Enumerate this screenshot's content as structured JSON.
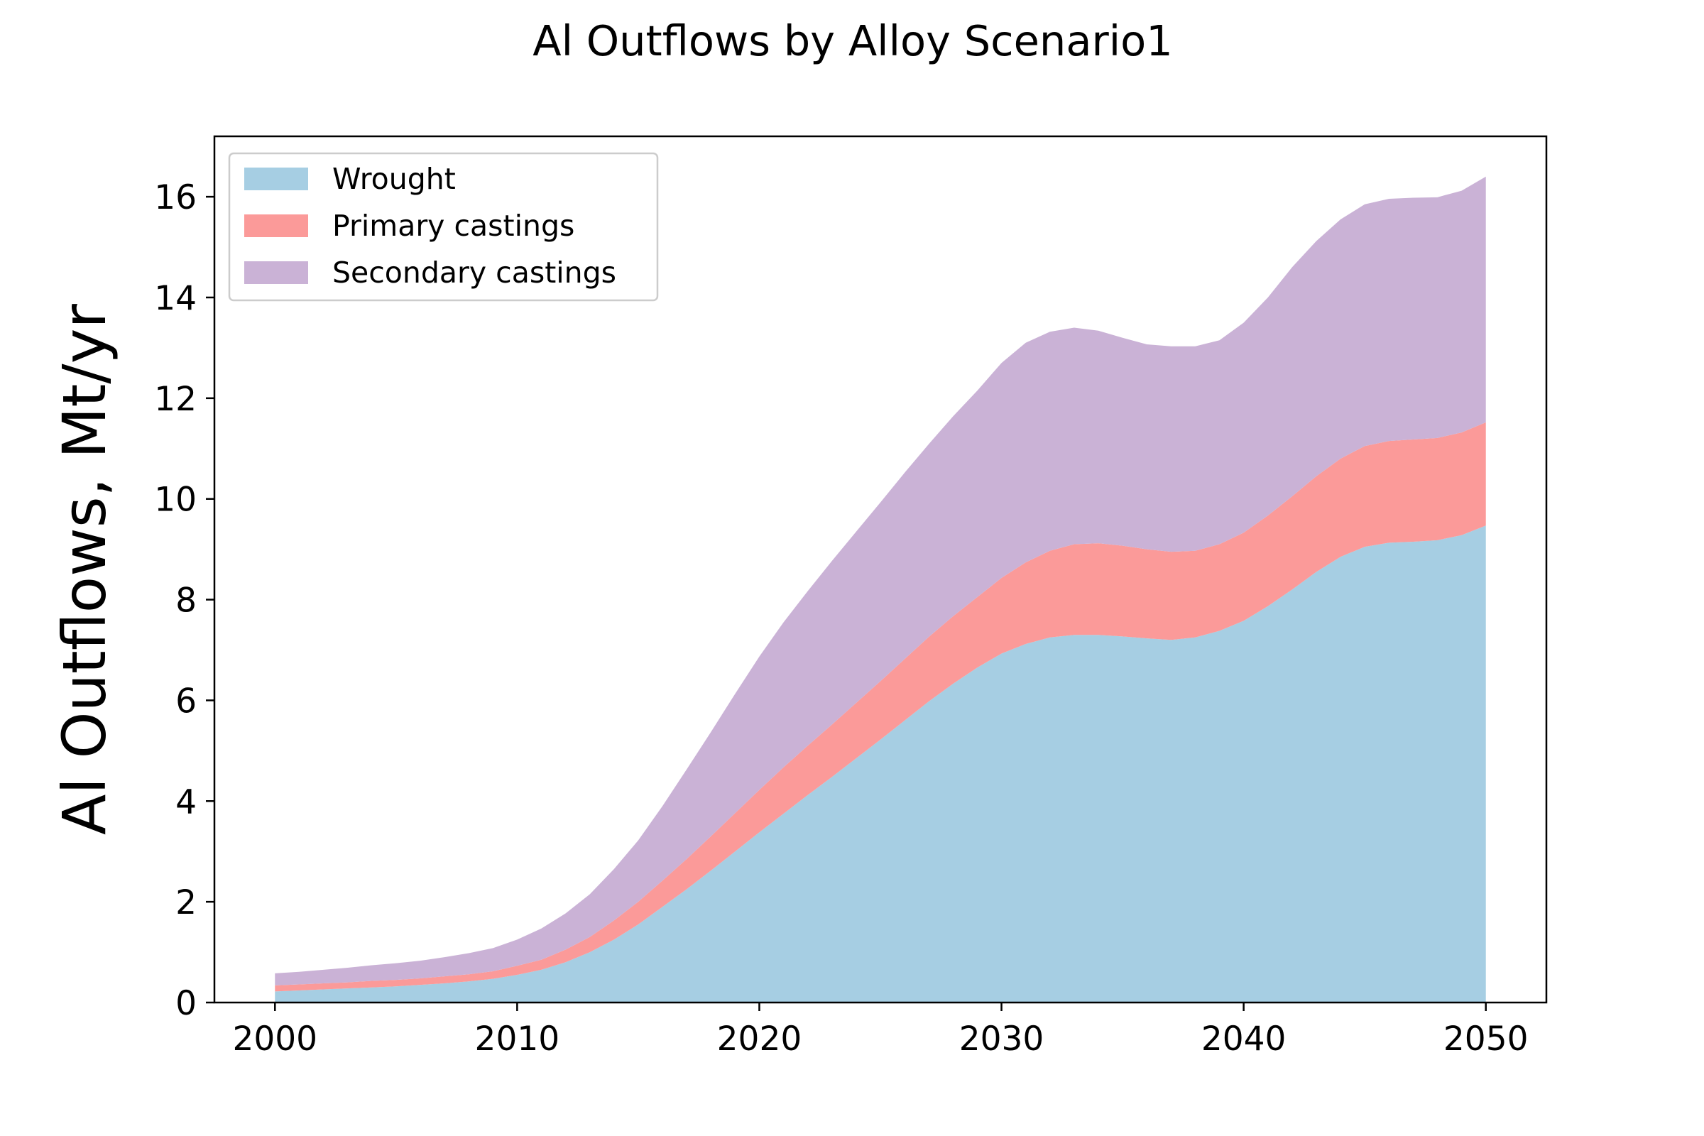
{
  "chart_data": {
    "type": "area",
    "stacked": true,
    "title": "Al Outflows by Alloy Scenario1",
    "xlabel": "",
    "ylabel": "Al Outflows, Mt/yr",
    "xlim": [
      1997.5,
      2052.5
    ],
    "ylim": [
      0,
      17.2
    ],
    "x_ticks": [
      2000,
      2010,
      2020,
      2030,
      2040,
      2050
    ],
    "y_ticks": [
      0,
      2,
      4,
      6,
      8,
      10,
      12,
      14,
      16
    ],
    "grid": false,
    "legend_position": "top-left",
    "x": [
      2000,
      2001,
      2002,
      2003,
      2004,
      2005,
      2006,
      2007,
      2008,
      2009,
      2010,
      2011,
      2012,
      2013,
      2014,
      2015,
      2016,
      2017,
      2018,
      2019,
      2020,
      2021,
      2022,
      2023,
      2024,
      2025,
      2026,
      2027,
      2028,
      2029,
      2030,
      2031,
      2032,
      2033,
      2034,
      2035,
      2036,
      2037,
      2038,
      2039,
      2040,
      2041,
      2042,
      2043,
      2044,
      2045,
      2046,
      2047,
      2048,
      2049,
      2050
    ],
    "series": [
      {
        "name": "Wrought",
        "color": "#a6cee3",
        "values": [
          0.22,
          0.24,
          0.26,
          0.28,
          0.3,
          0.32,
          0.35,
          0.38,
          0.42,
          0.47,
          0.55,
          0.65,
          0.8,
          1.0,
          1.25,
          1.55,
          1.9,
          2.25,
          2.62,
          3.0,
          3.38,
          3.75,
          4.12,
          4.48,
          4.85,
          5.22,
          5.6,
          5.98,
          6.33,
          6.65,
          6.93,
          7.12,
          7.25,
          7.3,
          7.3,
          7.27,
          7.23,
          7.2,
          7.25,
          7.38,
          7.58,
          7.87,
          8.2,
          8.55,
          8.85,
          9.05,
          9.13,
          9.15,
          9.18,
          9.28,
          9.47
        ]
      },
      {
        "name": "Primary castings",
        "color": "#fb9a99",
        "values": [
          0.12,
          0.12,
          0.12,
          0.12,
          0.13,
          0.13,
          0.13,
          0.14,
          0.14,
          0.15,
          0.18,
          0.2,
          0.25,
          0.3,
          0.38,
          0.45,
          0.52,
          0.6,
          0.68,
          0.76,
          0.84,
          0.92,
          0.98,
          1.04,
          1.1,
          1.16,
          1.22,
          1.28,
          1.34,
          1.4,
          1.5,
          1.62,
          1.72,
          1.8,
          1.82,
          1.8,
          1.77,
          1.75,
          1.72,
          1.72,
          1.75,
          1.8,
          1.85,
          1.9,
          1.95,
          2.0,
          2.02,
          2.03,
          2.03,
          2.04,
          2.05
        ]
      },
      {
        "name": "Secondary castings",
        "color": "#cab2d6",
        "values": [
          0.24,
          0.25,
          0.27,
          0.29,
          0.31,
          0.33,
          0.35,
          0.38,
          0.42,
          0.46,
          0.52,
          0.62,
          0.72,
          0.85,
          1.02,
          1.22,
          1.48,
          1.78,
          2.07,
          2.37,
          2.65,
          2.88,
          3.07,
          3.25,
          3.4,
          3.55,
          3.7,
          3.83,
          3.97,
          4.1,
          4.27,
          4.36,
          4.35,
          4.3,
          4.22,
          4.13,
          4.07,
          4.08,
          4.06,
          4.05,
          4.17,
          4.33,
          4.55,
          4.67,
          4.75,
          4.8,
          4.81,
          4.8,
          4.78,
          4.8,
          4.88
        ]
      }
    ]
  }
}
